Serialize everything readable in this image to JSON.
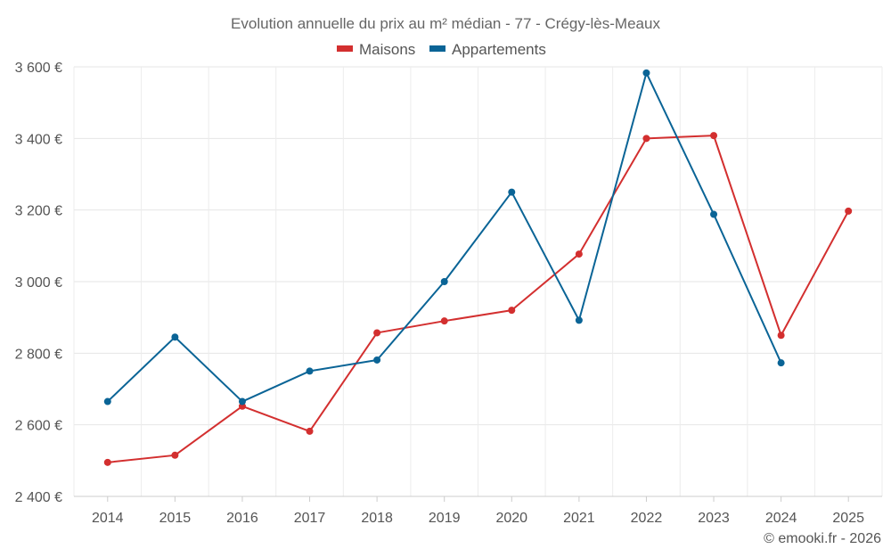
{
  "chart_data": {
    "type": "line",
    "title": "Evolution annuelle du prix au m² médian - 77 - Crégy-lès-Meaux",
    "categories": [
      "2014",
      "2015",
      "2016",
      "2017",
      "2018",
      "2019",
      "2020",
      "2021",
      "2022",
      "2023",
      "2024",
      "2025"
    ],
    "series": [
      {
        "name": "Maisons",
        "color": "#d32f2f",
        "values": [
          2495,
          2515,
          2652,
          2582,
          2857,
          2890,
          2920,
          3077,
          3400,
          3408,
          2850,
          3197
        ]
      },
      {
        "name": "Appartements",
        "color": "#0a6496",
        "values": [
          2665,
          2845,
          2665,
          2750,
          2781,
          3000,
          3250,
          2892,
          3583,
          3188,
          2773,
          null
        ]
      }
    ],
    "xlabel": "",
    "ylabel": "",
    "ylim": [
      2400,
      3600
    ],
    "yticks": [
      2400,
      2600,
      2800,
      3000,
      3200,
      3400,
      3600
    ],
    "ytick_labels": [
      "2 400 €",
      "2 600 €",
      "2 800 €",
      "3 000 €",
      "3 200 €",
      "3 400 €",
      "3 600 €"
    ],
    "grid": true,
    "legend_position": "top-center"
  },
  "credit": "© emooki.fr - 2026"
}
